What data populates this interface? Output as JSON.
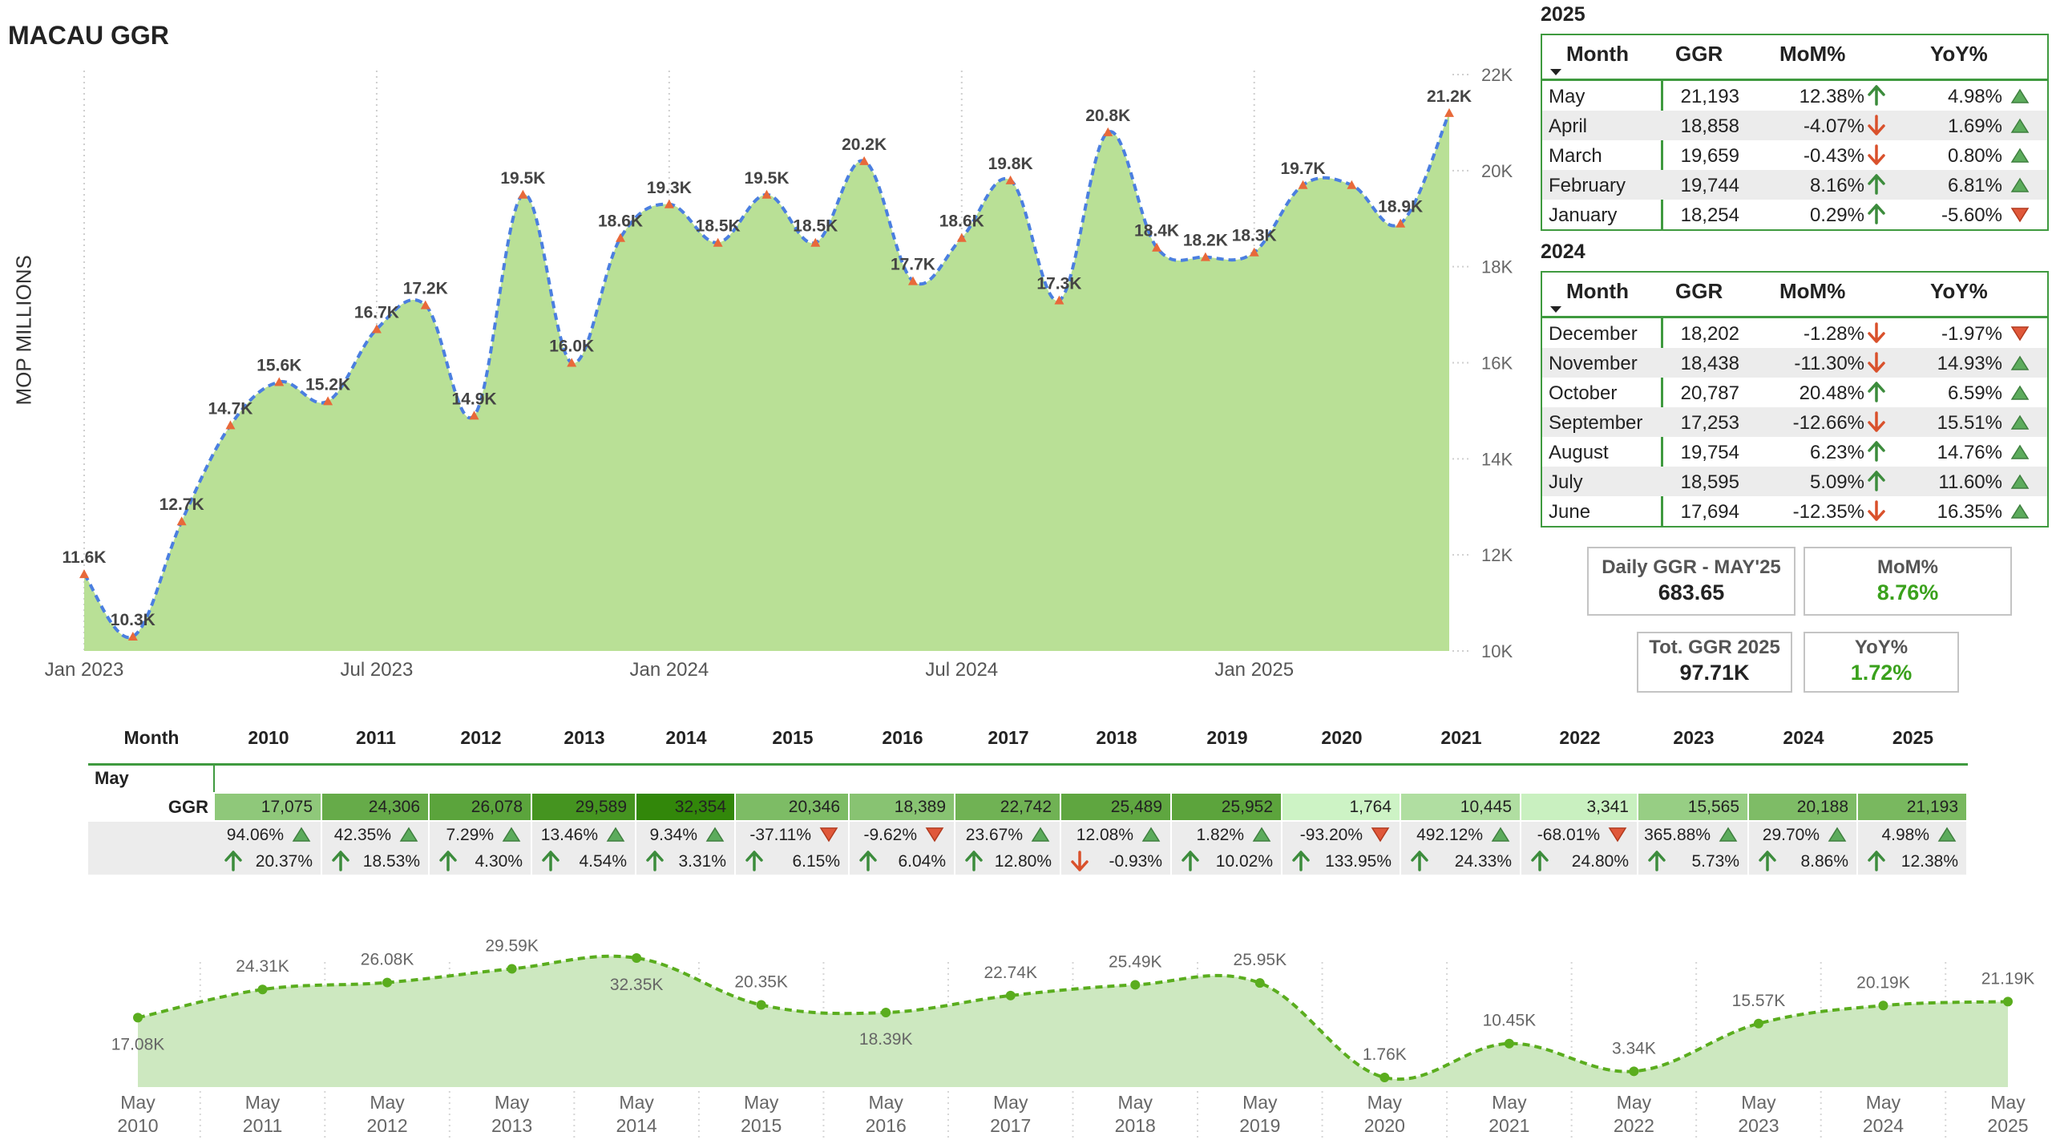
{
  "page": {
    "title": "MACAU GGR"
  },
  "chart_data": [
    {
      "type": "area",
      "id": "monthly",
      "title": "",
      "ylabel": "MOP MILLIONS",
      "xlabel": "",
      "ylim": [
        10000,
        22000
      ],
      "yticks": [
        10000,
        12000,
        14000,
        16000,
        18000,
        20000,
        22000
      ],
      "ytick_labels": [
        "10K",
        "12K",
        "14K",
        "16K",
        "18K",
        "20K",
        "22K"
      ],
      "xtick_labels": [
        "Jan 2023",
        "Jul 2023",
        "Jan 2024",
        "Jul 2024",
        "Jan 2025"
      ],
      "xtick_index": [
        0,
        6,
        12,
        18,
        24
      ],
      "grid": "vertical dotted",
      "series": [
        {
          "values": [
            11600,
            10300,
            12700,
            14700,
            15600,
            15200,
            16700,
            17200,
            14900,
            19500,
            16000,
            18600,
            19300,
            18500,
            19500,
            18500,
            20200,
            17700,
            18600,
            19800,
            17300,
            20800,
            18400,
            18200,
            18300,
            19700,
            19700,
            18900,
            21200
          ],
          "labels": [
            "11.6K",
            "10.3K",
            "12.7K",
            "14.7K",
            "15.6K",
            "15.2K",
            "16.7K",
            "17.2K",
            "14.9K",
            "19.5K",
            "16.0K",
            "18.6K",
            "19.3K",
            "18.5K",
            "19.5K",
            "18.5K",
            "20.2K",
            "17.7K",
            "18.6K",
            "19.8K",
            "17.3K",
            "20.8K",
            "18.4K",
            "18.2K",
            "18.3K",
            "19.7K",
            "",
            "18.9K",
            "21.2K"
          ]
        }
      ],
      "colors": {
        "area": "#b9e096",
        "line": "#4b7fe0",
        "marker": "#e8693a"
      }
    },
    {
      "type": "area",
      "id": "yearly-may",
      "title": "",
      "ylim": [
        0,
        35000
      ],
      "x": [
        "May 2010",
        "May 2011",
        "May 2012",
        "May 2013",
        "May 2014",
        "May 2015",
        "May 2016",
        "May 2017",
        "May 2018",
        "May 2019",
        "May 2020",
        "May 2021",
        "May 2022",
        "May 2023",
        "May 2024",
        "May 2025"
      ],
      "xtick_month": "May",
      "xtick_years": [
        "2010",
        "2011",
        "2012",
        "2013",
        "2014",
        "2015",
        "2016",
        "2017",
        "2018",
        "2019",
        "2020",
        "2021",
        "2022",
        "2023",
        "2024",
        "2025"
      ],
      "series": [
        {
          "values": [
            17075,
            24306,
            26078,
            29589,
            32354,
            20346,
            18389,
            22742,
            25489,
            25952,
            1764,
            10445,
            3341,
            15565,
            20188,
            21193
          ],
          "labels": [
            "17.08K",
            "24.31K",
            "26.08K",
            "29.59K",
            "32.35K",
            "20.35K",
            "18.39K",
            "22.74K",
            "25.49K",
            "25.95K",
            "1.76K",
            "10.45K",
            "3.34K",
            "15.57K",
            "20.19K",
            "21.19K"
          ]
        }
      ],
      "colors": {
        "area": "#cde8c0",
        "line": "#5aad1e",
        "marker": "#5aad1e"
      }
    }
  ],
  "tables": {
    "t2025": {
      "year": "2025",
      "headers": [
        "Month",
        "GGR",
        "MoM%",
        "YoY%"
      ],
      "rows": [
        {
          "month": "May",
          "ggr": "21,193",
          "mom": "12.38%",
          "mom_dir": "up",
          "yoy": "4.98%",
          "yoy_dir": "up"
        },
        {
          "month": "April",
          "ggr": "18,858",
          "mom": "-4.07%",
          "mom_dir": "down",
          "yoy": "1.69%",
          "yoy_dir": "up"
        },
        {
          "month": "March",
          "ggr": "19,659",
          "mom": "-0.43%",
          "mom_dir": "down",
          "yoy": "0.80%",
          "yoy_dir": "up"
        },
        {
          "month": "February",
          "ggr": "19,744",
          "mom": "8.16%",
          "mom_dir": "up",
          "yoy": "6.81%",
          "yoy_dir": "up"
        },
        {
          "month": "January",
          "ggr": "18,254",
          "mom": "0.29%",
          "mom_dir": "up",
          "yoy": "-5.60%",
          "yoy_dir": "down"
        }
      ]
    },
    "t2024": {
      "year": "2024",
      "headers": [
        "Month",
        "GGR",
        "MoM%",
        "YoY%"
      ],
      "rows": [
        {
          "month": "December",
          "ggr": "18,202",
          "mom": "-1.28%",
          "mom_dir": "down",
          "yoy": "-1.97%",
          "yoy_dir": "down"
        },
        {
          "month": "November",
          "ggr": "18,438",
          "mom": "-11.30%",
          "mom_dir": "down",
          "yoy": "14.93%",
          "yoy_dir": "up"
        },
        {
          "month": "October",
          "ggr": "20,787",
          "mom": "20.48%",
          "mom_dir": "up",
          "yoy": "6.59%",
          "yoy_dir": "up"
        },
        {
          "month": "September",
          "ggr": "17,253",
          "mom": "-12.66%",
          "mom_dir": "down",
          "yoy": "15.51%",
          "yoy_dir": "up"
        },
        {
          "month": "August",
          "ggr": "19,754",
          "mom": "6.23%",
          "mom_dir": "up",
          "yoy": "14.76%",
          "yoy_dir": "up"
        },
        {
          "month": "July",
          "ggr": "18,595",
          "mom": "5.09%",
          "mom_dir": "up",
          "yoy": "11.60%",
          "yoy_dir": "up"
        },
        {
          "month": "June",
          "ggr": "17,694",
          "mom": "-12.35%",
          "mom_dir": "down",
          "yoy": "16.35%",
          "yoy_dir": "up"
        }
      ]
    }
  },
  "kpis": {
    "daily": {
      "label": "Daily GGR - MAY'25",
      "value": "683.65"
    },
    "mom": {
      "label": "MoM%",
      "value": "8.76%"
    },
    "total": {
      "label": "Tot. GGR 2025",
      "value": "97.71K"
    },
    "yoy": {
      "label": "YoY%",
      "value": "1.72%"
    }
  },
  "matrix": {
    "corner": "Month",
    "month": "May",
    "row_labels": [
      "GGR",
      "YoY%",
      "MoM%"
    ],
    "years": [
      "2010",
      "2011",
      "2012",
      "2013",
      "2014",
      "2015",
      "2016",
      "2017",
      "2018",
      "2019",
      "2020",
      "2021",
      "2022",
      "2023",
      "2024",
      "2025"
    ],
    "ggr": [
      "17,075",
      "24,306",
      "26,078",
      "29,589",
      "32,354",
      "20,346",
      "18,389",
      "22,742",
      "25,489",
      "25,952",
      "1,764",
      "10,445",
      "3,341",
      "15,565",
      "20,188",
      "21,193"
    ],
    "ggr_values": [
      17075,
      24306,
      26078,
      29589,
      32354,
      20346,
      18389,
      22742,
      25489,
      25952,
      1764,
      10445,
      3341,
      15565,
      20188,
      21193
    ],
    "yoy": [
      "94.06%",
      "42.35%",
      "7.29%",
      "13.46%",
      "9.34%",
      "-37.11%",
      "-9.62%",
      "23.67%",
      "12.08%",
      "1.82%",
      "-93.20%",
      "492.12%",
      "-68.01%",
      "365.88%",
      "29.70%",
      "4.98%"
    ],
    "yoy_dir": [
      "up",
      "up",
      "up",
      "up",
      "up",
      "down",
      "down",
      "up",
      "up",
      "up",
      "down",
      "up",
      "down",
      "up",
      "up",
      "up"
    ],
    "mom": [
      "20.37%",
      "18.53%",
      "4.30%",
      "4.54%",
      "3.31%",
      "6.15%",
      "6.04%",
      "12.80%",
      "-0.93%",
      "10.02%",
      "133.95%",
      "24.33%",
      "24.80%",
      "5.73%",
      "8.86%",
      "12.38%"
    ],
    "mom_dir": [
      "up",
      "up",
      "up",
      "up",
      "up",
      "up",
      "up",
      "up",
      "down",
      "up",
      "up",
      "up",
      "up",
      "up",
      "up",
      "up"
    ]
  },
  "colors": {
    "accent_green": "#3f9a3f",
    "up_arrow": "#3c8c3c",
    "down_arrow": "#d9512c",
    "up_triangle": "#5cab5c",
    "down_triangle": "#e0583a"
  }
}
